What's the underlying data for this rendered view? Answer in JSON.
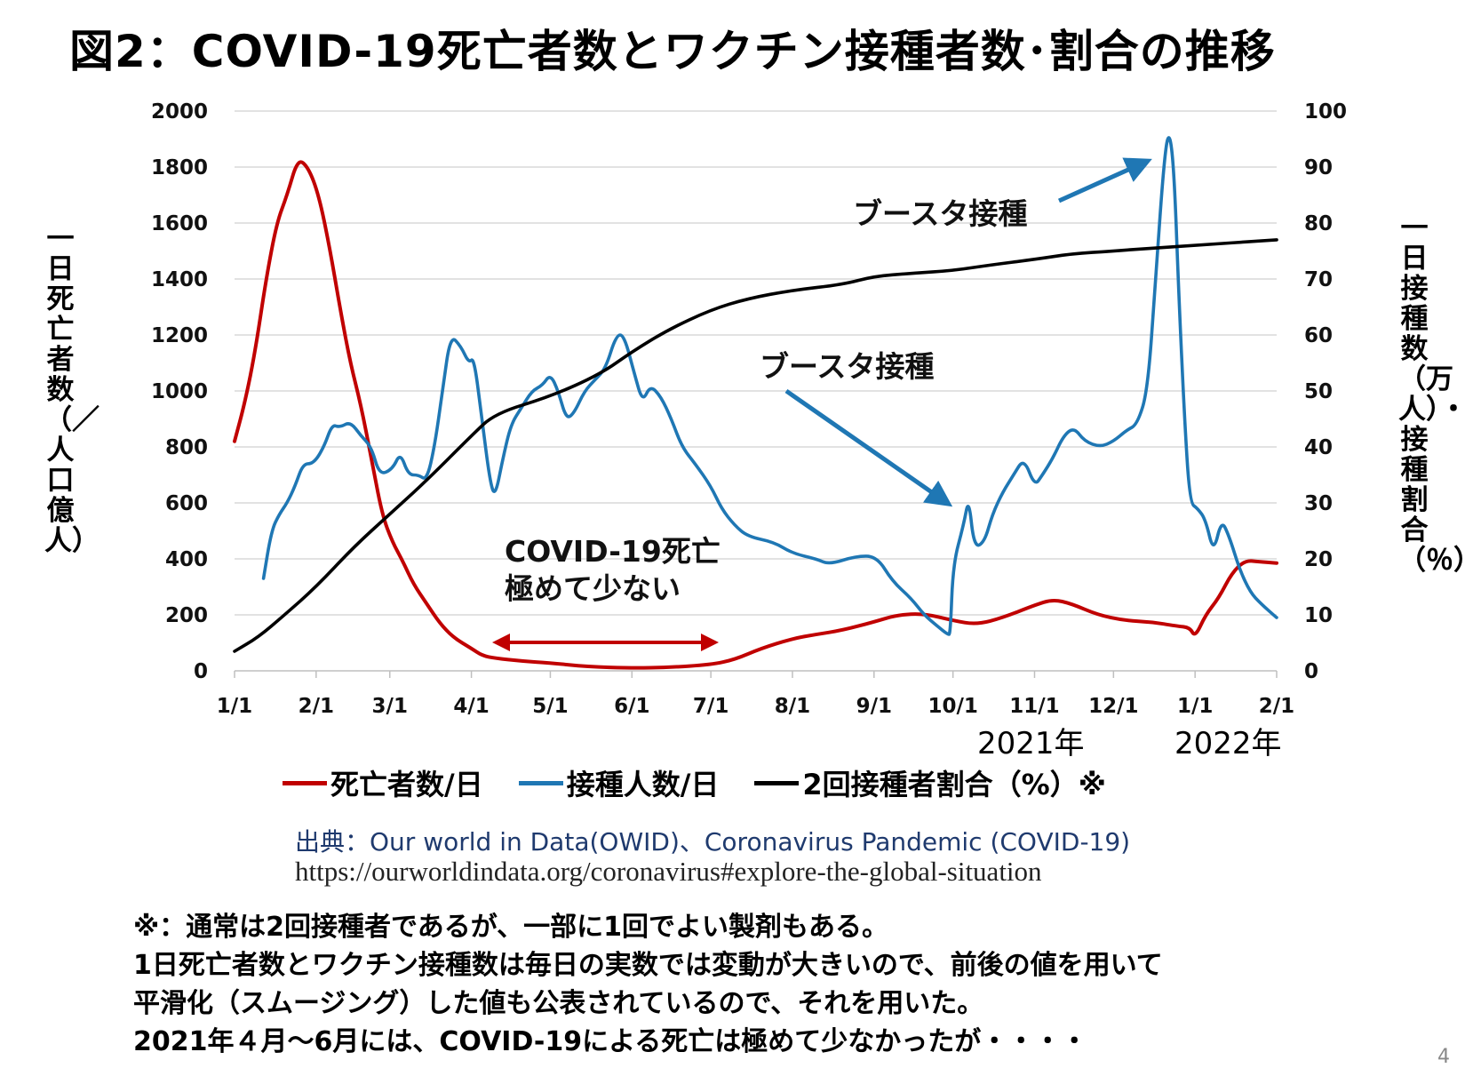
{
  "title": "図2：COVID-19死亡者数とワクチン接種者数･割合の推移",
  "left_axis_label": "一日死亡者数（／人口億人）",
  "right_axis_label": "一日接種数（万人）・接種割合（％）",
  "year_labels": [
    "2021年",
    "2022年"
  ],
  "annotations": {
    "booster_1": "ブースタ接種",
    "booster_2": "ブースタ接種",
    "low_deaths_line1": "COVID-19死亡",
    "low_deaths_line2": "極めて少ない"
  },
  "legend": [
    {
      "label": "死亡者数/日",
      "color": "#c00000"
    },
    {
      "label": "接種人数/日",
      "color": "#1f77b4"
    },
    {
      "label": "2回接種者割合（%）※",
      "color": "#000000"
    }
  ],
  "source": "出典：Our world in Data(OWID)、Coronavirus Pandemic (COVID-19)",
  "url": "https://ourworldindata.org/coronavirus#explore-the-global-situation",
  "notes": [
    "※：通常は2回接種者であるが、一部に1回でよい製剤もある。",
    "1日死亡者数とワクチン接種数は毎日の実数では変動が大きいので、前後の値を用いて",
    "平滑化（スムージング）した値も公表されているので、それを用いた。",
    "2021年４月～6月には、COVID-19による死亡は極めて少なかったが・・・・"
  ],
  "page_number": "4",
  "chart_data": {
    "type": "line",
    "x_ticks": [
      "1/1",
      "2/1",
      "3/1",
      "4/1",
      "5/1",
      "6/1",
      "7/1",
      "8/1",
      "9/1",
      "10/1",
      "11/1",
      "12/1",
      "1/1",
      "2/1"
    ],
    "y_left": {
      "range": [
        0,
        2000
      ],
      "ticks": [
        0,
        200,
        400,
        600,
        800,
        1000,
        1200,
        1400,
        1600,
        1800,
        2000
      ]
    },
    "y_right": {
      "range": [
        0,
        100
      ],
      "ticks": [
        0,
        10,
        20,
        30,
        40,
        50,
        60,
        70,
        80,
        90,
        100
      ]
    },
    "grid": true,
    "series": [
      {
        "name": "死亡者数/日",
        "axis": "left",
        "color": "#c00000",
        "points": [
          [
            "2021-01-01",
            820
          ],
          [
            "2021-01-05",
            960
          ],
          [
            "2021-01-09",
            1150
          ],
          [
            "2021-01-13",
            1400
          ],
          [
            "2021-01-17",
            1600
          ],
          [
            "2021-01-21",
            1700
          ],
          [
            "2021-01-25",
            1830
          ],
          [
            "2021-01-29",
            1800
          ],
          [
            "2021-02-02",
            1700
          ],
          [
            "2021-02-06",
            1520
          ],
          [
            "2021-02-10",
            1300
          ],
          [
            "2021-02-14",
            1100
          ],
          [
            "2021-02-18",
            950
          ],
          [
            "2021-02-22",
            760
          ],
          [
            "2021-02-26",
            560
          ],
          [
            "2021-03-02",
            460
          ],
          [
            "2021-03-06",
            390
          ],
          [
            "2021-03-10",
            310
          ],
          [
            "2021-03-15",
            240
          ],
          [
            "2021-03-20",
            170
          ],
          [
            "2021-03-25",
            120
          ],
          [
            "2021-04-01",
            80
          ],
          [
            "2021-04-05",
            55
          ],
          [
            "2021-04-10",
            45
          ],
          [
            "2021-04-20",
            35
          ],
          [
            "2021-05-01",
            28
          ],
          [
            "2021-05-15",
            15
          ],
          [
            "2021-06-01",
            10
          ],
          [
            "2021-06-15",
            12
          ],
          [
            "2021-07-01",
            22
          ],
          [
            "2021-07-10",
            40
          ],
          [
            "2021-07-20",
            80
          ],
          [
            "2021-08-01",
            115
          ],
          [
            "2021-08-10",
            130
          ],
          [
            "2021-08-20",
            145
          ],
          [
            "2021-09-01",
            175
          ],
          [
            "2021-09-10",
            200
          ],
          [
            "2021-09-20",
            205
          ],
          [
            "2021-10-01",
            180
          ],
          [
            "2021-10-10",
            165
          ],
          [
            "2021-10-20",
            190
          ],
          [
            "2021-11-01",
            235
          ],
          [
            "2021-11-08",
            255
          ],
          [
            "2021-11-15",
            240
          ],
          [
            "2021-11-25",
            200
          ],
          [
            "2021-12-05",
            180
          ],
          [
            "2021-12-15",
            175
          ],
          [
            "2021-12-25",
            160
          ],
          [
            "2021-12-30",
            155
          ],
          [
            "2022-01-01",
            120
          ],
          [
            "2022-01-05",
            200
          ],
          [
            "2022-01-10",
            260
          ],
          [
            "2022-01-15",
            350
          ],
          [
            "2022-01-20",
            395
          ],
          [
            "2022-01-25",
            390
          ],
          [
            "2022-02-01",
            385
          ]
        ]
      },
      {
        "name": "接種人数/日",
        "axis": "right",
        "color": "#1f77b4",
        "points": [
          [
            "2021-01-12",
            16.5
          ],
          [
            "2021-01-15",
            25
          ],
          [
            "2021-01-18",
            28
          ],
          [
            "2021-01-21",
            30
          ],
          [
            "2021-01-24",
            33
          ],
          [
            "2021-01-27",
            37
          ],
          [
            "2021-01-31",
            37
          ],
          [
            "2021-02-04",
            40
          ],
          [
            "2021-02-07",
            44
          ],
          [
            "2021-02-10",
            43.5
          ],
          [
            "2021-02-14",
            44.5
          ],
          [
            "2021-02-18",
            42
          ],
          [
            "2021-02-22",
            40
          ],
          [
            "2021-02-25",
            35
          ],
          [
            "2021-03-02",
            36
          ],
          [
            "2021-03-05",
            39
          ],
          [
            "2021-03-08",
            35
          ],
          [
            "2021-03-12",
            35
          ],
          [
            "2021-03-15",
            34
          ],
          [
            "2021-03-18",
            40
          ],
          [
            "2021-03-21",
            50
          ],
          [
            "2021-03-24",
            60
          ],
          [
            "2021-03-28",
            58
          ],
          [
            "2021-03-31",
            55
          ],
          [
            "2021-04-02",
            56
          ],
          [
            "2021-04-05",
            45
          ],
          [
            "2021-04-08",
            34
          ],
          [
            "2021-04-10",
            31
          ],
          [
            "2021-04-13",
            38
          ],
          [
            "2021-04-16",
            44
          ],
          [
            "2021-04-20",
            47
          ],
          [
            "2021-04-24",
            50
          ],
          [
            "2021-04-28",
            51
          ],
          [
            "2021-05-01",
            53
          ],
          [
            "2021-05-04",
            50
          ],
          [
            "2021-05-07",
            45
          ],
          [
            "2021-05-10",
            46
          ],
          [
            "2021-05-14",
            50
          ],
          [
            "2021-05-18",
            52
          ],
          [
            "2021-05-22",
            54
          ],
          [
            "2021-05-26",
            60
          ],
          [
            "2021-05-29",
            60
          ],
          [
            "2021-06-02",
            53
          ],
          [
            "2021-06-05",
            48
          ],
          [
            "2021-06-08",
            51
          ],
          [
            "2021-06-12",
            49
          ],
          [
            "2021-06-16",
            45
          ],
          [
            "2021-06-20",
            40
          ],
          [
            "2021-06-25",
            37
          ],
          [
            "2021-07-01",
            33
          ],
          [
            "2021-07-05",
            29
          ],
          [
            "2021-07-10",
            26
          ],
          [
            "2021-07-15",
            24
          ],
          [
            "2021-07-25",
            23
          ],
          [
            "2021-08-01",
            21
          ],
          [
            "2021-08-10",
            20
          ],
          [
            "2021-08-15",
            19
          ],
          [
            "2021-08-25",
            20.5
          ],
          [
            "2021-09-02",
            20.5
          ],
          [
            "2021-09-08",
            16
          ],
          [
            "2021-09-15",
            13
          ],
          [
            "2021-09-20",
            10
          ],
          [
            "2021-09-25",
            8
          ],
          [
            "2021-09-29",
            6.5
          ],
          [
            "2021-09-30",
            6.5
          ],
          [
            "2021-10-01",
            19
          ],
          [
            "2021-10-05",
            26
          ],
          [
            "2021-10-07",
            31
          ],
          [
            "2021-10-09",
            22
          ],
          [
            "2021-10-13",
            23
          ],
          [
            "2021-10-16",
            28
          ],
          [
            "2021-10-20",
            32
          ],
          [
            "2021-10-24",
            35
          ],
          [
            "2021-10-28",
            38
          ],
          [
            "2021-11-01",
            33
          ],
          [
            "2021-11-04",
            35
          ],
          [
            "2021-11-08",
            38
          ],
          [
            "2021-11-12",
            42
          ],
          [
            "2021-11-16",
            43.5
          ],
          [
            "2021-11-20",
            41
          ],
          [
            "2021-11-26",
            40
          ],
          [
            "2021-12-01",
            41
          ],
          [
            "2021-12-06",
            43
          ],
          [
            "2021-12-10",
            44
          ],
          [
            "2021-12-14",
            50
          ],
          [
            "2021-12-17",
            70
          ],
          [
            "2021-12-20",
            90
          ],
          [
            "2021-12-22",
            97
          ],
          [
            "2021-12-24",
            90
          ],
          [
            "2021-12-26",
            65
          ],
          [
            "2021-12-28",
            45
          ],
          [
            "2021-12-30",
            30
          ],
          [
            "2022-01-02",
            29
          ],
          [
            "2022-01-05",
            27
          ],
          [
            "2022-01-08",
            21
          ],
          [
            "2022-01-11",
            27
          ],
          [
            "2022-01-14",
            24
          ],
          [
            "2022-01-18",
            18
          ],
          [
            "2022-01-22",
            14
          ],
          [
            "2022-01-26",
            12
          ],
          [
            "2022-02-01",
            9.5
          ]
        ]
      },
      {
        "name": "2回接種者割合（%）※",
        "axis": "right",
        "color": "#000000",
        "points": [
          [
            "2021-01-01",
            3.5
          ],
          [
            "2021-01-10",
            6
          ],
          [
            "2021-01-20",
            10
          ],
          [
            "2021-02-01",
            15
          ],
          [
            "2021-02-15",
            22
          ],
          [
            "2021-03-01",
            28
          ],
          [
            "2021-03-15",
            34
          ],
          [
            "2021-04-01",
            42
          ],
          [
            "2021-04-10",
            46
          ],
          [
            "2021-05-01",
            49
          ],
          [
            "2021-05-20",
            53
          ],
          [
            "2021-06-01",
            57
          ],
          [
            "2021-06-15",
            61
          ],
          [
            "2021-07-01",
            64.5
          ],
          [
            "2021-07-15",
            66.5
          ],
          [
            "2021-08-01",
            68
          ],
          [
            "2021-08-20",
            69
          ],
          [
            "2021-09-01",
            70.5
          ],
          [
            "2021-09-15",
            71
          ],
          [
            "2021-10-01",
            71.5
          ],
          [
            "2021-10-15",
            72.5
          ],
          [
            "2021-11-01",
            73.5
          ],
          [
            "2021-11-15",
            74.5
          ],
          [
            "2021-12-01",
            75
          ],
          [
            "2021-12-15",
            75.5
          ],
          [
            "2022-01-01",
            76
          ],
          [
            "2022-02-01",
            77
          ]
        ]
      }
    ]
  }
}
